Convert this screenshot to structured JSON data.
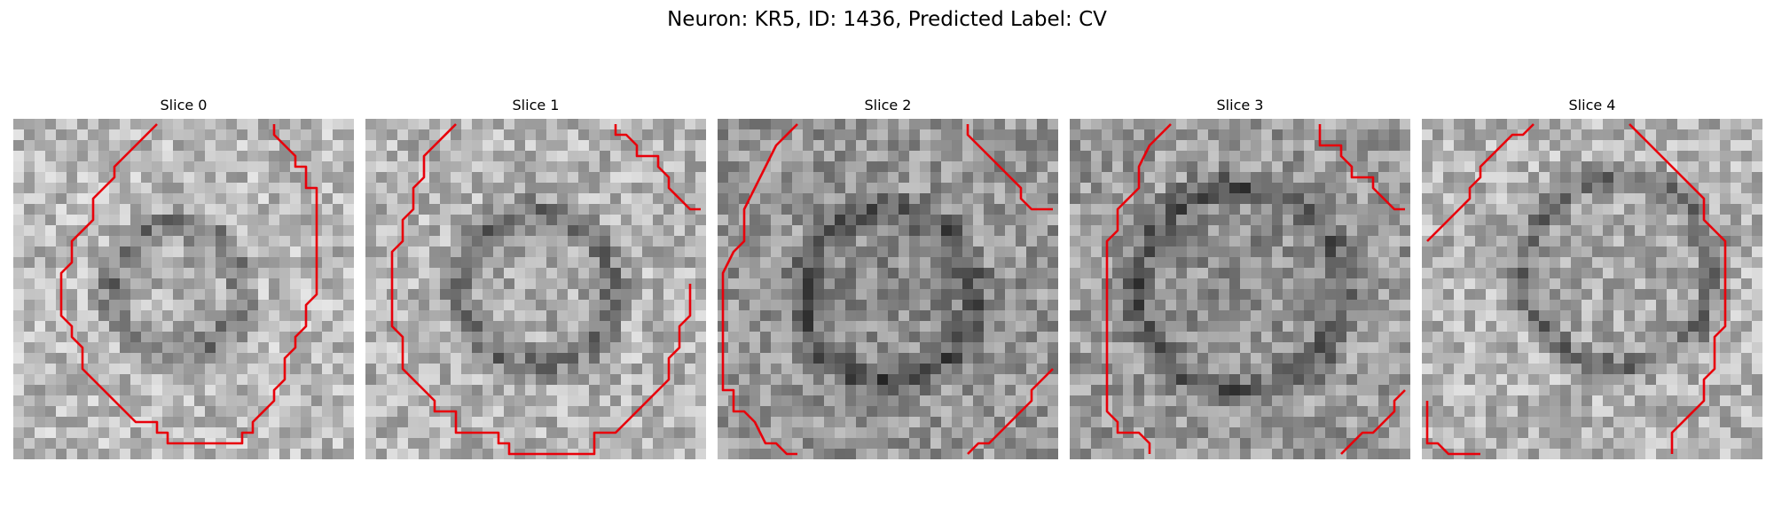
{
  "figure": {
    "title": "Neuron: KR5, ID: 1436, Predicted Label: CV"
  },
  "slices": [
    {
      "title": "Slice 0"
    },
    {
      "title": "Slice 1"
    },
    {
      "title": "Slice 2"
    },
    {
      "title": "Slice 3"
    },
    {
      "title": "Slice 4"
    }
  ],
  "style": {
    "contour_color": "#e8000b",
    "colormap": "grayscale"
  }
}
